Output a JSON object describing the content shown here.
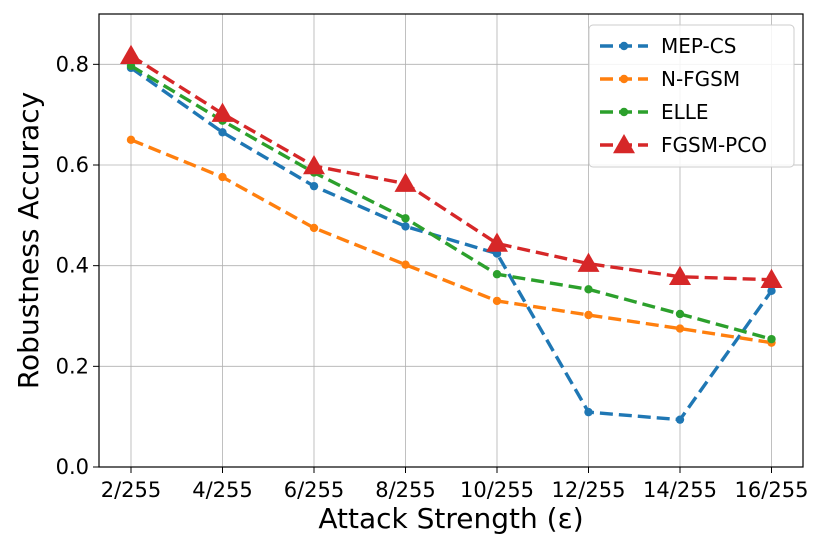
{
  "chart_data": {
    "type": "line",
    "title": "",
    "xlabel": "Attack Strength (ε)",
    "ylabel": "Robustness Accuracy",
    "categories": [
      "2/255",
      "4/255",
      "6/255",
      "8/255",
      "10/255",
      "12/255",
      "14/255",
      "16/255"
    ],
    "ylim": [
      0,
      0.9
    ],
    "yticks": [
      "0.0",
      "0.2",
      "0.4",
      "0.6",
      "0.8"
    ],
    "grid": true,
    "legend_position": "top-right",
    "series": [
      {
        "name": "MEP-CS",
        "color": "#1f77b4",
        "marker": "circle",
        "values": [
          0.793,
          0.665,
          0.558,
          0.478,
          0.424,
          0.109,
          0.094,
          0.35
        ]
      },
      {
        "name": "N-FGSM",
        "color": "#ff7f0e",
        "marker": "circle",
        "values": [
          0.65,
          0.576,
          0.475,
          0.402,
          0.33,
          0.302,
          0.275,
          0.247
        ]
      },
      {
        "name": "ELLE",
        "color": "#2ca02c",
        "marker": "circle",
        "values": [
          0.797,
          0.688,
          0.585,
          0.494,
          0.383,
          0.353,
          0.304,
          0.254
        ]
      },
      {
        "name": "FGSM-PCO",
        "color": "#d62728",
        "marker": "triangle",
        "values": [
          0.817,
          0.702,
          0.598,
          0.563,
          0.444,
          0.404,
          0.378,
          0.372
        ]
      }
    ]
  }
}
